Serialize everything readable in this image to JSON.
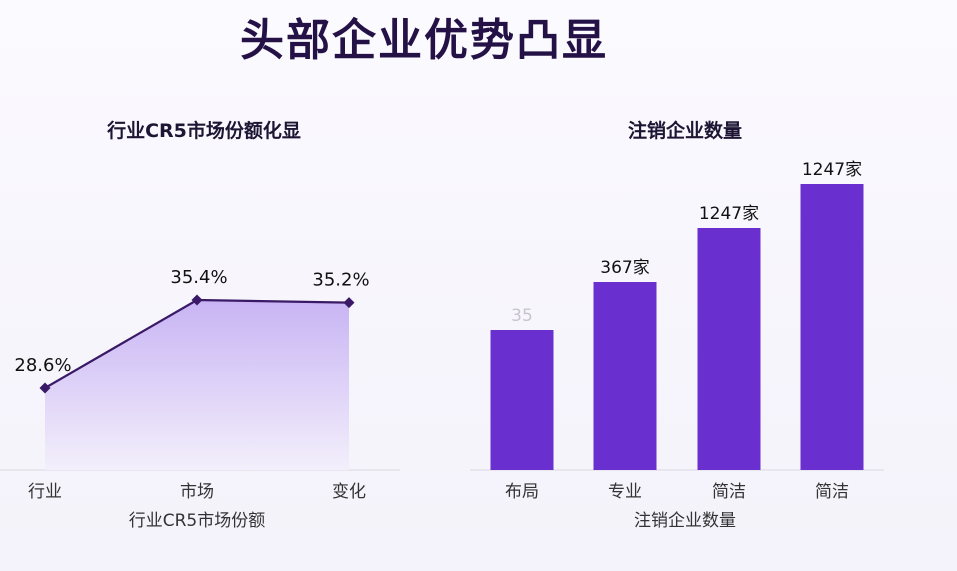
{
  "page_title": "头部企业优势凸显",
  "colors": {
    "line": "#3a1a66",
    "area_top": "#c8b4f4",
    "area_bottom": "#f3effb",
    "bar": "#6a30cf",
    "bar_label_faint": "#c8c4cf"
  },
  "chart_data": [
    {
      "type": "area",
      "title": "行业CR5市场份额化显",
      "xlabel": "行业CR5市场份额",
      "ylabel": "",
      "categories": [
        "行业",
        "市场",
        "变化"
      ],
      "values": [
        28.6,
        35.4,
        35.2
      ],
      "data_labels": [
        "28.6%",
        "35.4%",
        "35.2%"
      ],
      "ylim": [
        0,
        40
      ],
      "grid": false,
      "legend": "none"
    },
    {
      "type": "bar",
      "title": "注销企业数量",
      "xlabel": "注销企业数量",
      "ylabel": "",
      "categories": [
        "布局",
        "专业",
        "简洁",
        "简洁"
      ],
      "values": [
        35,
        367,
        1247,
        1247
      ],
      "data_labels": [
        "35",
        "367家",
        "1247家",
        "1247家"
      ],
      "grid": false,
      "legend": "none"
    }
  ]
}
